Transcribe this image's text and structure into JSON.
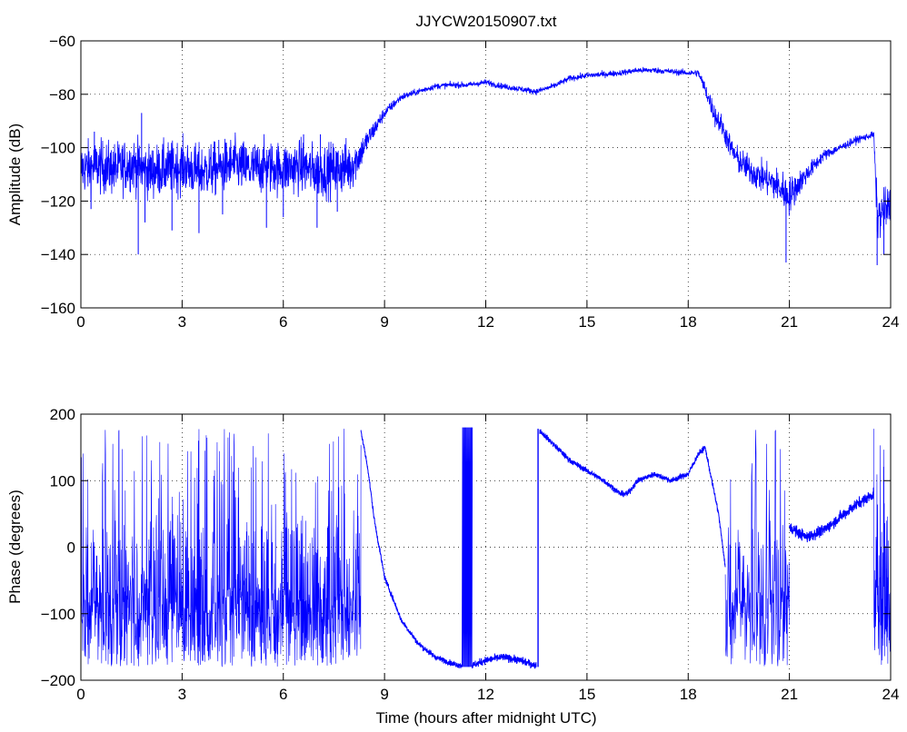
{
  "figure": {
    "title": "JJYCW20150907.txt"
  },
  "chart_data": [
    {
      "type": "line",
      "title": "JJYCW20150907.txt",
      "xlabel": "",
      "ylabel": "Amplitude (dB)",
      "xlim": [
        0,
        24
      ],
      "ylim": [
        -160,
        -60
      ],
      "xticks": [
        0,
        3,
        6,
        9,
        12,
        15,
        18,
        21,
        24
      ],
      "yticks": [
        -160,
        -140,
        -120,
        -100,
        -80,
        -60
      ],
      "xtick_labels": [
        "0",
        "3",
        "6",
        "9",
        "12",
        "15",
        "18",
        "21",
        "24"
      ],
      "ytick_labels": [
        "−160",
        "−140",
        "−120",
        "−100",
        "−80",
        "−60"
      ],
      "grid": true,
      "line_color": "#0000ff",
      "series": [
        {
          "x": [
            0,
            0.5,
            1,
            1.5,
            2,
            2.5,
            3,
            3.5,
            4,
            4.5,
            5,
            5.5,
            6,
            6.5,
            7,
            7.5,
            8,
            8.2,
            8.5,
            9,
            9.5,
            10,
            10.5,
            11,
            11.5,
            12,
            12.5,
            13,
            13.5,
            14,
            14.5,
            15,
            15.5,
            16,
            16.5,
            17,
            17.5,
            18,
            18.3,
            18.5,
            18.8,
            19,
            19.3,
            19.5,
            20,
            20.5,
            20.8,
            21,
            21.5,
            22,
            22.5,
            23,
            23.4,
            23.5,
            23.6,
            24
          ],
          "mean": [
            -108,
            -107,
            -108,
            -106,
            -109,
            -108,
            -107,
            -109,
            -108,
            -106,
            -108,
            -107,
            -108,
            -107,
            -109,
            -108,
            -107,
            -104,
            -97,
            -87,
            -81,
            -79,
            -77,
            -76.5,
            -76.5,
            -75.5,
            -77,
            -78,
            -79,
            -77,
            -74,
            -73,
            -72.5,
            -72,
            -71,
            -71,
            -71.5,
            -72,
            -72,
            -78,
            -88,
            -92,
            -101,
            -105,
            -110,
            -113,
            -116,
            -118,
            -110,
            -103,
            -100,
            -97,
            -95.5,
            -95,
            -126,
            -122
          ],
          "noise": [
            7,
            7,
            7,
            7,
            7,
            7,
            7,
            7,
            7,
            7,
            7,
            7,
            7,
            7,
            7,
            7,
            7,
            5,
            3,
            1.5,
            1,
            0.8,
            0.8,
            0.8,
            0.8,
            0.8,
            0.8,
            0.8,
            0.8,
            0.8,
            0.8,
            0.8,
            0.8,
            0.8,
            0.8,
            0.8,
            0.8,
            0.8,
            1,
            2,
            3,
            3,
            3,
            3.5,
            4,
            4.5,
            5,
            5,
            2.5,
            1.5,
            1,
            1,
            0.8,
            1,
            6,
            6
          ],
          "dips": [
            [
              0.3,
              -123
            ],
            [
              1.7,
              -140
            ],
            [
              1.9,
              -128
            ],
            [
              2.7,
              -131
            ],
            [
              3.5,
              -132
            ],
            [
              4.2,
              -125
            ],
            [
              5.5,
              -130
            ],
            [
              6.0,
              -126
            ],
            [
              7.0,
              -130
            ],
            [
              7.6,
              -124
            ],
            [
              20.9,
              -143
            ],
            [
              23.6,
              -144
            ],
            [
              23.8,
              -140
            ]
          ],
          "spikes": [
            [
              1.8,
              -87
            ],
            [
              0.4,
              -94
            ],
            [
              6.6,
              -95
            ],
            [
              7.1,
              -95
            ]
          ]
        }
      ]
    },
    {
      "type": "line",
      "title": "",
      "xlabel": "Time (hours after midnight UTC)",
      "ylabel": "Phase (degrees)",
      "xlim": [
        0,
        24
      ],
      "ylim": [
        -200,
        200
      ],
      "xticks": [
        0,
        3,
        6,
        9,
        12,
        15,
        18,
        21,
        24
      ],
      "yticks": [
        -200,
        -100,
        0,
        100,
        200
      ],
      "xtick_labels": [
        "0",
        "3",
        "6",
        "9",
        "12",
        "15",
        "18",
        "21",
        "24"
      ],
      "ytick_labels": [
        "−200",
        "−100",
        "0",
        "100",
        "200"
      ],
      "grid": true,
      "line_color": "#0000ff",
      "series": [
        {
          "smooth_x": [
            8.3,
            8.5,
            8.7,
            9.0,
            9.5,
            10.0,
            10.5,
            11.0,
            11.3
          ],
          "smooth_y": [
            175,
            120,
            40,
            -45,
            -110,
            -145,
            -165,
            -175,
            -178
          ],
          "plateau_x": [
            11.6,
            12.0,
            12.5,
            13.0,
            13.5
          ],
          "plateau_y": [
            -178,
            -170,
            -165,
            -170,
            -178
          ],
          "wrap_x": [
            11.3,
            11.6
          ],
          "jump_x": 13.55,
          "smooth2_x": [
            13.6,
            14.0,
            14.5,
            15.0,
            15.5,
            16.0,
            16.2,
            16.5,
            17.0,
            17.5,
            18.0,
            18.3,
            18.5,
            18.7,
            18.9,
            19.1
          ],
          "smooth2_y": [
            175,
            155,
            130,
            115,
            100,
            80,
            80,
            100,
            110,
            100,
            110,
            140,
            150,
            100,
            50,
            -30
          ],
          "noisy_region": [
            19.1,
            21.0
          ],
          "smooth3_x": [
            21.0,
            21.5,
            22.0,
            22.5,
            23.0,
            23.5
          ],
          "smooth3_y": [
            30,
            15,
            25,
            45,
            65,
            80
          ],
          "noisy_region2": [
            23.5,
            24.0
          ]
        }
      ]
    }
  ]
}
